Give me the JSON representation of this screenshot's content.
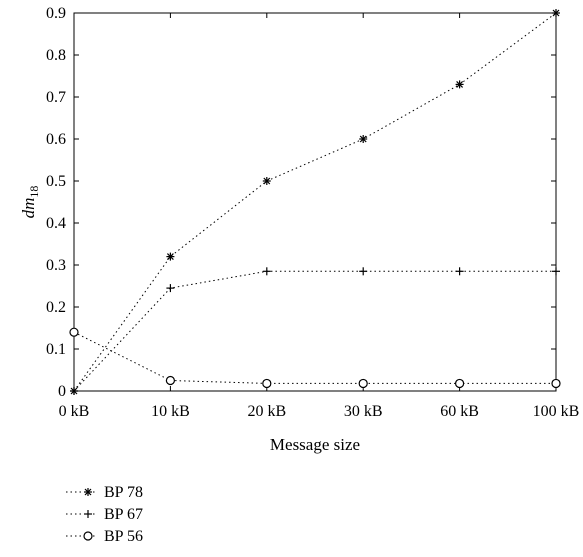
{
  "chart_data": {
    "type": "line",
    "title": "",
    "xlabel": "Message size",
    "ylabel": "dm",
    "ylabel_subscript": "18",
    "categories": [
      "0 kB",
      "10 kB",
      "20 kB",
      "30 kB",
      "60 kB",
      "100 kB"
    ],
    "ylim": [
      0,
      0.9
    ],
    "yticks": [
      "0",
      "0.1",
      "0.2",
      "0.3",
      "0.4",
      "0.5",
      "0.6",
      "0.7",
      "0.8",
      "0.9"
    ],
    "grid": false,
    "legend_position": "bottom-left, outside plot",
    "series": [
      {
        "name": "BP 78",
        "marker": "asterisk",
        "line_style": "dotted",
        "values": [
          0,
          0.32,
          0.5,
          0.6,
          0.73,
          0.9
        ]
      },
      {
        "name": "BP 67",
        "marker": "plus",
        "line_style": "dotted",
        "values": [
          0,
          0.245,
          0.285,
          0.285,
          0.285,
          0.285
        ]
      },
      {
        "name": "BP 56",
        "marker": "circle",
        "line_style": "dotted",
        "values": [
          0.14,
          0.025,
          0.018,
          0.018,
          0.018,
          0.018
        ]
      }
    ],
    "colors": {
      "line": "#000000",
      "background": "#ffffff"
    }
  }
}
